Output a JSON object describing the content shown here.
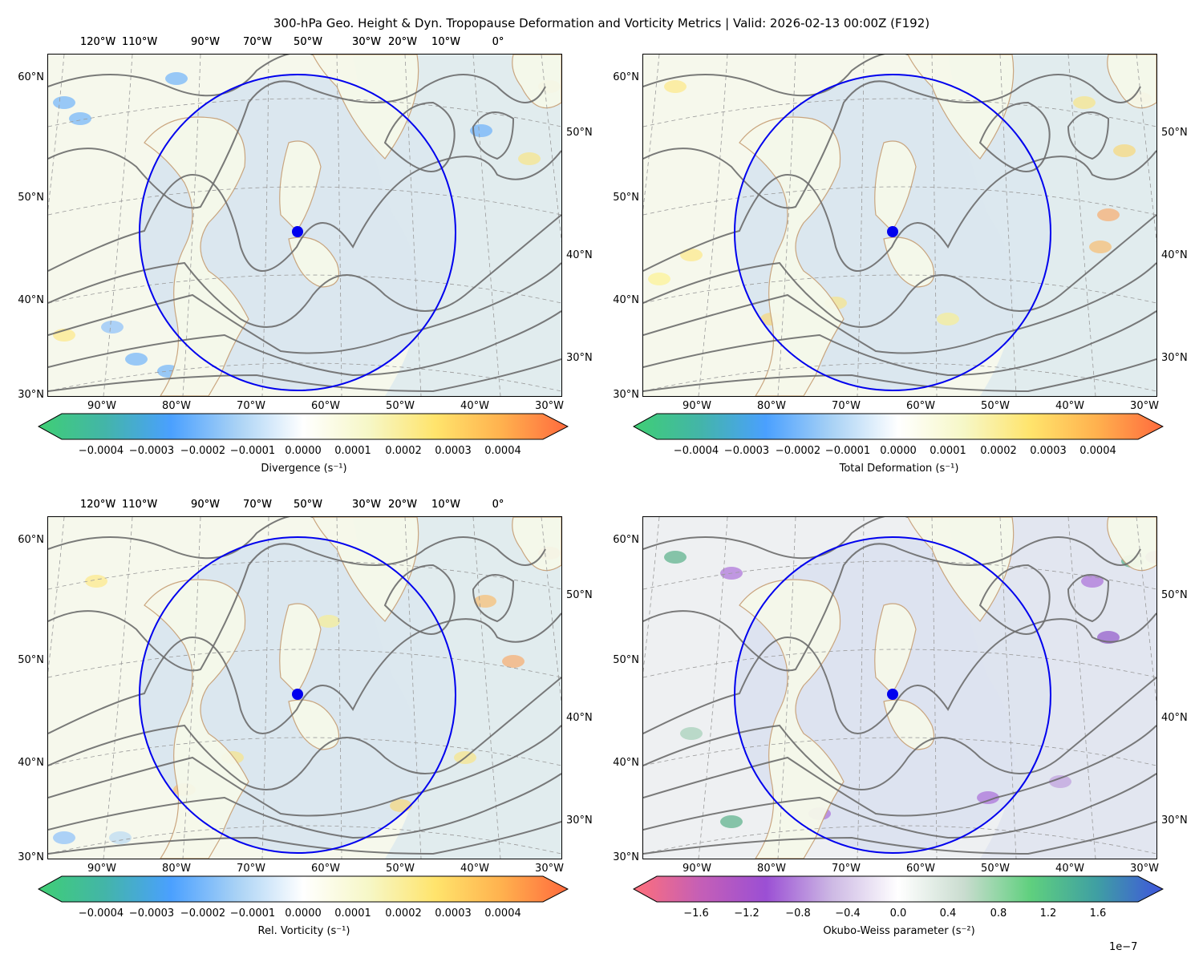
{
  "title": "300-hPa Geo. Height & Dyn. Tropopause Deformation and Vorticity Metrics |  Valid: 2026-02-13 00:00Z (F192)",
  "map": {
    "top_lon_labels": [
      "120°W",
      "110°W",
      "90°W",
      "70°W",
      "50°W",
      "30°W",
      "20°W",
      "10°W",
      "0°"
    ],
    "bottom_lon_labels": [
      "90°W",
      "80°W",
      "70°W",
      "60°W",
      "50°W",
      "40°W",
      "30°W"
    ],
    "left_lat_labels": [
      "60°N",
      "50°N",
      "40°N",
      "30°N"
    ],
    "right_lat_labels": [
      "50°N",
      "40°N",
      "30°N"
    ],
    "circle_color": "#0000ee",
    "contour_color": "#6b6b6b",
    "coast_color": "#c8a27a"
  },
  "panels": [
    {
      "id": "divergence",
      "colorbar_label": "Divergence (s⁻¹)",
      "ticks": [
        "−0.0004",
        "−0.0003",
        "−0.0002",
        "−0.0001",
        "0.0000",
        "0.0001",
        "0.0002",
        "0.0003",
        "0.0004"
      ],
      "cmap": [
        "#3fcf74",
        "#43b5a8",
        "#4aa0ff",
        "#a9d2f5",
        "#ffffff",
        "#f6f7c6",
        "#ffe46c",
        "#ffb14e",
        "#ff6a3d"
      ],
      "multiplier": ""
    },
    {
      "id": "deformation",
      "colorbar_label": "Total Deformation (s⁻¹)",
      "ticks": [
        "−0.0004",
        "−0.0003",
        "−0.0002",
        "−0.0001",
        "0.0000",
        "0.0001",
        "0.0002",
        "0.0003",
        "0.0004"
      ],
      "cmap": [
        "#3fcf74",
        "#43b5a8",
        "#4aa0ff",
        "#a9d2f5",
        "#ffffff",
        "#f6f7c6",
        "#ffe46c",
        "#ffb14e",
        "#ff6a3d"
      ],
      "multiplier": ""
    },
    {
      "id": "vorticity",
      "colorbar_label": "Rel. Vorticity (s⁻¹)",
      "ticks": [
        "−0.0004",
        "−0.0003",
        "−0.0002",
        "−0.0001",
        "0.0000",
        "0.0001",
        "0.0002",
        "0.0003",
        "0.0004"
      ],
      "cmap": [
        "#3fcf74",
        "#43b5a8",
        "#4aa0ff",
        "#a9d2f5",
        "#ffffff",
        "#f6f7c6",
        "#ffe46c",
        "#ffb14e",
        "#ff6a3d"
      ],
      "multiplier": ""
    },
    {
      "id": "okubo_weiss",
      "colorbar_label": "Okubo-Weiss parameter (s⁻²)",
      "ticks": [
        "−1.6",
        "−1.2",
        "−0.8",
        "−0.4",
        "0.0",
        "0.4",
        "0.8",
        "1.2",
        "1.6"
      ],
      "cmap": [
        "#ff6f7a",
        "#c55fb6",
        "#9b4fd4",
        "#cdb9e4",
        "#ffffff",
        "#c9dccf",
        "#5fd07e",
        "#3f9fa3",
        "#3f55dd"
      ],
      "multiplier": "1e−7"
    }
  ]
}
